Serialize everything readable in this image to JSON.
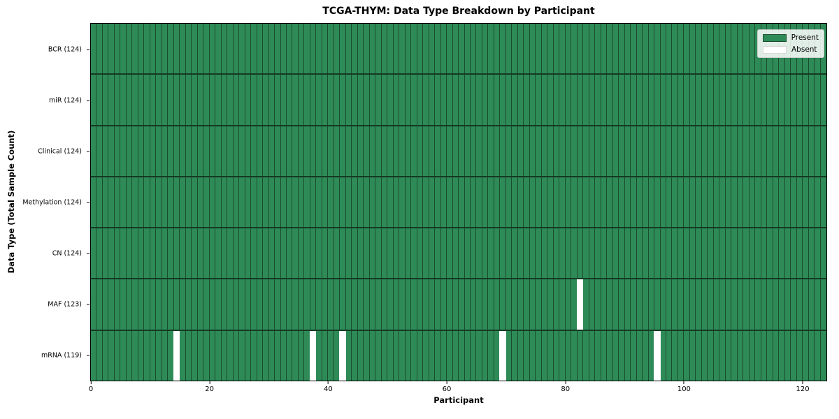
{
  "title": "TCGA-THYM: Data Type Breakdown by Participant",
  "axes": {
    "xlabel": "Participant",
    "ylabel": "Data Type (Total Sample Count)"
  },
  "legend": {
    "items": [
      {
        "label": "Present",
        "color": "#2E8B57"
      },
      {
        "label": "Absent",
        "color": "#FFFFFF"
      }
    ],
    "position": "upper right"
  },
  "chart_data": {
    "type": "heatmap",
    "title": "TCGA-THYM: Data Type Breakdown by Participant",
    "xlabel": "Participant",
    "ylabel": "Data Type (Total Sample Count)",
    "x_ticks": [
      0,
      20,
      40,
      60,
      80,
      100,
      120
    ],
    "xlim": [
      0,
      124
    ],
    "n_participants": 124,
    "grid": true,
    "legend_position": "upper right",
    "rows": [
      {
        "label": "BCR (124)",
        "data_type": "BCR",
        "total": 124,
        "absent_indices": []
      },
      {
        "label": "miR (124)",
        "data_type": "miR",
        "total": 124,
        "absent_indices": []
      },
      {
        "label": "Clinical (124)",
        "data_type": "Clinical",
        "total": 124,
        "absent_indices": []
      },
      {
        "label": "Methylation (124)",
        "data_type": "Methylation",
        "total": 124,
        "absent_indices": []
      },
      {
        "label": "CN (124)",
        "data_type": "CN",
        "total": 124,
        "absent_indices": []
      },
      {
        "label": "MAF (123)",
        "data_type": "MAF",
        "total": 123,
        "absent_indices": [
          82
        ]
      },
      {
        "label": "mRNA (119)",
        "data_type": "mRNA",
        "total": 119,
        "absent_indices": [
          14,
          37,
          42,
          69,
          95
        ]
      }
    ],
    "colors": {
      "present": "#2E8B57",
      "absent": "#FFFFFF",
      "cell_gridline": "#1A4C2E",
      "row_separator": "#143A24",
      "spine": "#000000"
    }
  }
}
